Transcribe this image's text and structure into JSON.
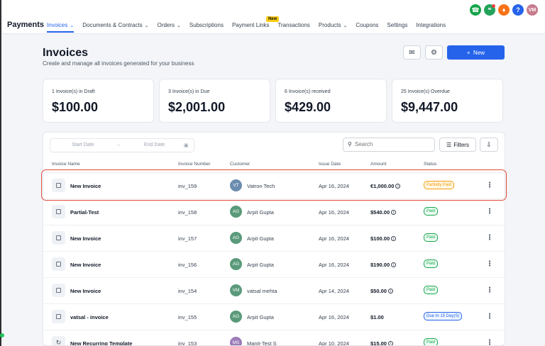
{
  "app": {
    "brand": "Payments"
  },
  "nav": [
    {
      "label": "Invoices",
      "chevron": true,
      "active": true
    },
    {
      "label": "Documents & Contracts",
      "chevron": true
    },
    {
      "label": "Orders",
      "chevron": true
    },
    {
      "label": "Subscriptions"
    },
    {
      "label": "Payment Links",
      "badge": "New"
    },
    {
      "label": "Transactions"
    },
    {
      "label": "Products",
      "chevron": true
    },
    {
      "label": "Coupons"
    },
    {
      "label": "Settings"
    },
    {
      "label": "Integrations"
    }
  ],
  "topIcons": [
    "phone-icon",
    "megaphone-icon",
    "bell-icon",
    "help-icon"
  ],
  "user": {
    "initials": "VM"
  },
  "page": {
    "title": "Invoices",
    "subtitle": "Create and manage all invoices generated for your business",
    "new_button": "New"
  },
  "stats": [
    {
      "label": "1 Invoice(s) in Draft",
      "value": "$100.00"
    },
    {
      "label": "3 Invoice(s) in Due",
      "value": "$2,001.00"
    },
    {
      "label": "6 Invoice(s) received",
      "value": "$429.00"
    },
    {
      "label": "25 Invoice(s) Overdue",
      "value": "$9,447.00"
    }
  ],
  "filters": {
    "start_placeholder": "Start Date",
    "end_placeholder": "End Date",
    "search_placeholder": "Search",
    "filters_label": "Filters"
  },
  "columns": [
    "Invoice Name",
    "Invoice Number",
    "Customer",
    "Issue Date",
    "Amount",
    "Status"
  ],
  "rows": [
    {
      "name": "New Invoice",
      "number": "inv_159",
      "initials": "VT",
      "avatarColor": "#6b8cae",
      "customer": "Vatron Tech",
      "date": "Apr 16, 2024",
      "amount": "€1,000.00",
      "info": true,
      "status": "Partially Paid",
      "statusColor": "#f59e0b",
      "statusBg": "#fff7e6",
      "icon": "square"
    },
    {
      "name": "Partial-Test",
      "number": "inv_158",
      "initials": "AG",
      "avatarColor": "#5a9a7a",
      "customer": "Arpit Gupta",
      "date": "Apr 16, 2024",
      "amount": "$540.00",
      "info": true,
      "status": "Paid",
      "statusColor": "#16a34a",
      "statusBg": "#ecfdf3",
      "icon": "square"
    },
    {
      "name": "New Invoice",
      "number": "inv_157",
      "initials": "AG",
      "avatarColor": "#5a9a7a",
      "customer": "Arpit Gupta",
      "date": "Apr 16, 2024",
      "amount": "$100.00",
      "info": true,
      "status": "Paid",
      "statusColor": "#16a34a",
      "statusBg": "#ecfdf3",
      "icon": "square"
    },
    {
      "name": "New Invoice",
      "number": "inv_156",
      "initials": "AG",
      "avatarColor": "#5a9a7a",
      "customer": "Arpit Gupta",
      "date": "Apr 16, 2024",
      "amount": "$190.00",
      "info": true,
      "status": "Paid",
      "statusColor": "#16a34a",
      "statusBg": "#ecfdf3",
      "icon": "square"
    },
    {
      "name": "New Invoice",
      "number": "inv_154",
      "initials": "VM",
      "avatarColor": "#5a9a7a",
      "customer": "vatsal mehta",
      "date": "Apr 14, 2024",
      "amount": "$50.00",
      "info": true,
      "status": "Paid",
      "statusColor": "#16a34a",
      "statusBg": "#ecfdf3",
      "icon": "square"
    },
    {
      "name": "vatsal - invoice",
      "number": "inv_155",
      "initials": "AG",
      "avatarColor": "#5a9a7a",
      "customer": "Arpit Gupta",
      "date": "Apr 16, 2024",
      "amount": "$1.00",
      "info": false,
      "status": "Due In 15 Day(S)",
      "statusColor": "#2563eb",
      "statusBg": "#eff6ff",
      "icon": "square"
    },
    {
      "name": "New Recurring Template",
      "number": "inv_153",
      "initials": "MS",
      "avatarColor": "#9b7bb8",
      "customer": "Manit-Test S",
      "date": "Apr 10, 2024",
      "amount": "$15.00",
      "info": true,
      "status": "Paid",
      "statusColor": "#16a34a",
      "statusBg": "#ecfdf3",
      "icon": "recurring"
    }
  ],
  "colors": {
    "accent": "#2563eb",
    "highlight": "#e24c3c"
  }
}
